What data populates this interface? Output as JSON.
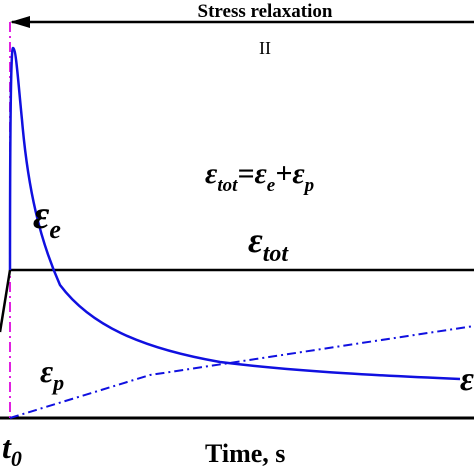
{
  "header": {
    "title": "Stress relaxation",
    "stage": "II"
  },
  "equation": {
    "parts": [
      "ε",
      "tot",
      "=ε",
      "e",
      "+ε",
      "p"
    ]
  },
  "labels": {
    "elastic": {
      "symbol": "ε",
      "subscript": "e"
    },
    "total": {
      "symbol": "ε",
      "subscript": "tot"
    },
    "plastic": {
      "symbol": "ε",
      "subscript": "p"
    },
    "edge": "ε"
  },
  "axis": {
    "origin": {
      "symbol": "t",
      "subscript": "0"
    },
    "x_label": "Time, s"
  }
}
